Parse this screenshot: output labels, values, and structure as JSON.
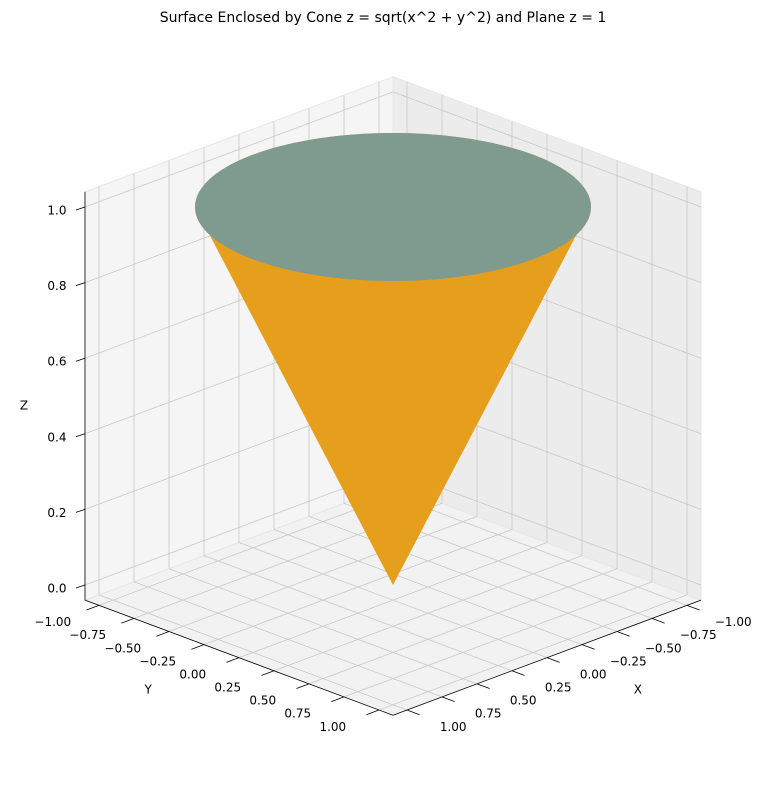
{
  "chart_data": {
    "type": "surface3d",
    "title": "Surface Enclosed by Cone z = sqrt(x^2 + y^2) and Plane z = 1",
    "xlabel": "X",
    "ylabel": "Y",
    "zlabel": "Z",
    "xlim": [
      -1.1,
      1.1
    ],
    "ylim": [
      -1.1,
      1.1
    ],
    "zlim": [
      -0.04,
      1.04
    ],
    "xticks": [
      {
        "value": -1,
        "label": "−1.00"
      },
      {
        "value": -0.75,
        "label": "−0.75"
      },
      {
        "value": -0.5,
        "label": "−0.50"
      },
      {
        "value": -0.25,
        "label": "−0.25"
      },
      {
        "value": 0,
        "label": "0.00"
      },
      0.25,
      {
        "value": 0.5,
        "label": "0.50"
      },
      0.75,
      {
        "value": 1,
        "label": "1.00"
      }
    ],
    "yticks": [
      {
        "value": -1,
        "label": "−1.00"
      },
      {
        "value": -0.75,
        "label": "−0.75"
      },
      {
        "value": -0.5,
        "label": "−0.50"
      },
      {
        "value": -0.25,
        "label": "−0.25"
      },
      {
        "value": 0,
        "label": "0.00"
      },
      0.25,
      {
        "value": 0.5,
        "label": "0.50"
      },
      0.75,
      {
        "value": 1,
        "label": "1.00"
      }
    ],
    "zticks": [
      {
        "value": 0,
        "label": "0.0"
      },
      0.2,
      0.4,
      0.6,
      0.8,
      {
        "value": 1,
        "label": "1.0"
      }
    ],
    "grid": true,
    "surfaces": [
      {
        "type": "cone",
        "color": "#e69f1c"
      },
      {
        "type": "plane",
        "color": "#7f9a8e"
      }
    ]
  }
}
